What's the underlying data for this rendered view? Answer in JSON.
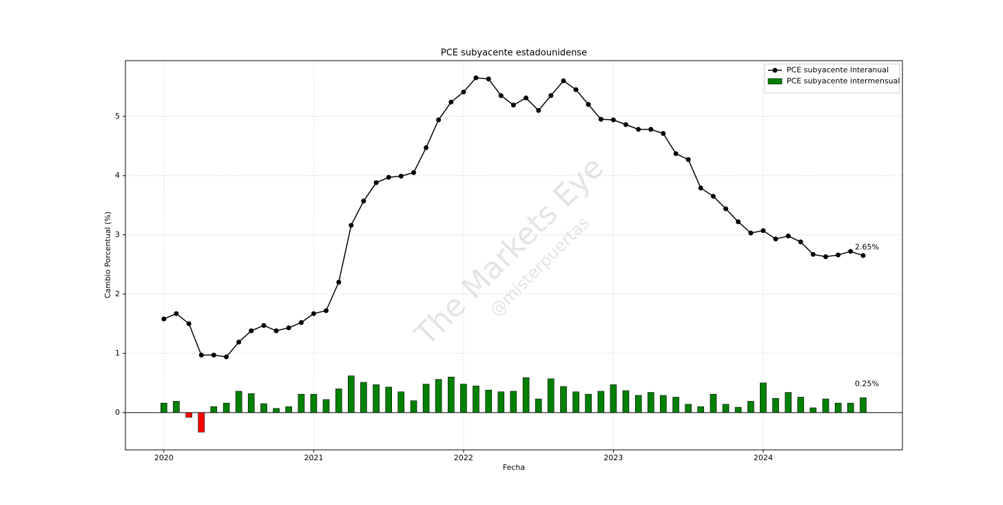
{
  "chart_data": {
    "type": "line-bar",
    "title": "PCE subyacente estadounidense",
    "xlabel": "Fecha",
    "ylabel": "Cambio Porcentual (%)",
    "watermark": [
      "The Markets Eye",
      "@misterpuertas"
    ],
    "x": [
      2020,
      2020.083,
      2020.167,
      2020.25,
      2020.333,
      2020.417,
      2020.5,
      2020.583,
      2020.667,
      2020.75,
      2020.833,
      2020.917,
      2021,
      2021.083,
      2021.167,
      2021.25,
      2021.333,
      2021.417,
      2021.5,
      2021.583,
      2021.667,
      2021.75,
      2021.833,
      2021.917,
      2022,
      2022.083,
      2022.167,
      2022.25,
      2022.333,
      2022.417,
      2022.5,
      2022.583,
      2022.667,
      2022.75,
      2022.833,
      2022.917,
      2023,
      2023.083,
      2023.167,
      2023.25,
      2023.333,
      2023.417,
      2023.5,
      2023.583,
      2023.667,
      2023.75,
      2023.833,
      2023.917,
      2024,
      2024.083,
      2024.167,
      2024.25,
      2024.333,
      2024.417,
      2024.5,
      2024.583,
      2024.667
    ],
    "series": [
      {
        "name": "PCE subyacente interanual",
        "type": "line",
        "color": "#000000",
        "values": [
          1.58,
          1.67,
          1.5,
          0.97,
          0.97,
          0.94,
          1.19,
          1.38,
          1.47,
          1.38,
          1.43,
          1.52,
          1.67,
          1.72,
          2.2,
          3.16,
          3.57,
          3.88,
          3.97,
          3.99,
          4.05,
          4.47,
          4.94,
          5.24,
          5.41,
          5.65,
          5.63,
          5.35,
          5.19,
          5.31,
          5.1,
          5.35,
          5.6,
          5.45,
          5.2,
          4.95,
          4.94,
          4.86,
          4.78,
          4.78,
          4.71,
          4.37,
          4.27,
          3.79,
          3.65,
          3.44,
          3.22,
          3.03,
          3.07,
          2.93,
          2.98,
          2.88,
          2.67,
          2.63,
          2.66,
          2.72,
          2.65
        ]
      },
      {
        "name": "PCE subyacente intermensual",
        "type": "bar",
        "color": "#008000",
        "negative_color": "#ff0000",
        "values": [
          0.16,
          0.19,
          -0.08,
          -0.33,
          0.1,
          0.16,
          0.36,
          0.32,
          0.15,
          0.07,
          0.1,
          0.31,
          0.31,
          0.22,
          0.4,
          0.62,
          0.51,
          0.47,
          0.43,
          0.35,
          0.2,
          0.48,
          0.56,
          0.6,
          0.48,
          0.45,
          0.38,
          0.35,
          0.36,
          0.59,
          0.23,
          0.57,
          0.44,
          0.35,
          0.31,
          0.36,
          0.47,
          0.37,
          0.29,
          0.34,
          0.29,
          0.26,
          0.14,
          0.1,
          0.31,
          0.14,
          0.09,
          0.19,
          0.5,
          0.24,
          0.34,
          0.26,
          0.08,
          0.23,
          0.16,
          0.16,
          0.25
        ]
      }
    ],
    "annotations": [
      "2.65%",
      "0.25%"
    ],
    "xlim": [
      2019.743,
      2024.929
    ],
    "xticks": [
      2020,
      2021,
      2022,
      2023,
      2024
    ],
    "ylim": [
      -0.63,
      5.94
    ],
    "yticks": [
      0,
      1,
      2,
      3,
      4,
      5
    ],
    "grid": true,
    "legend": "upper right"
  }
}
